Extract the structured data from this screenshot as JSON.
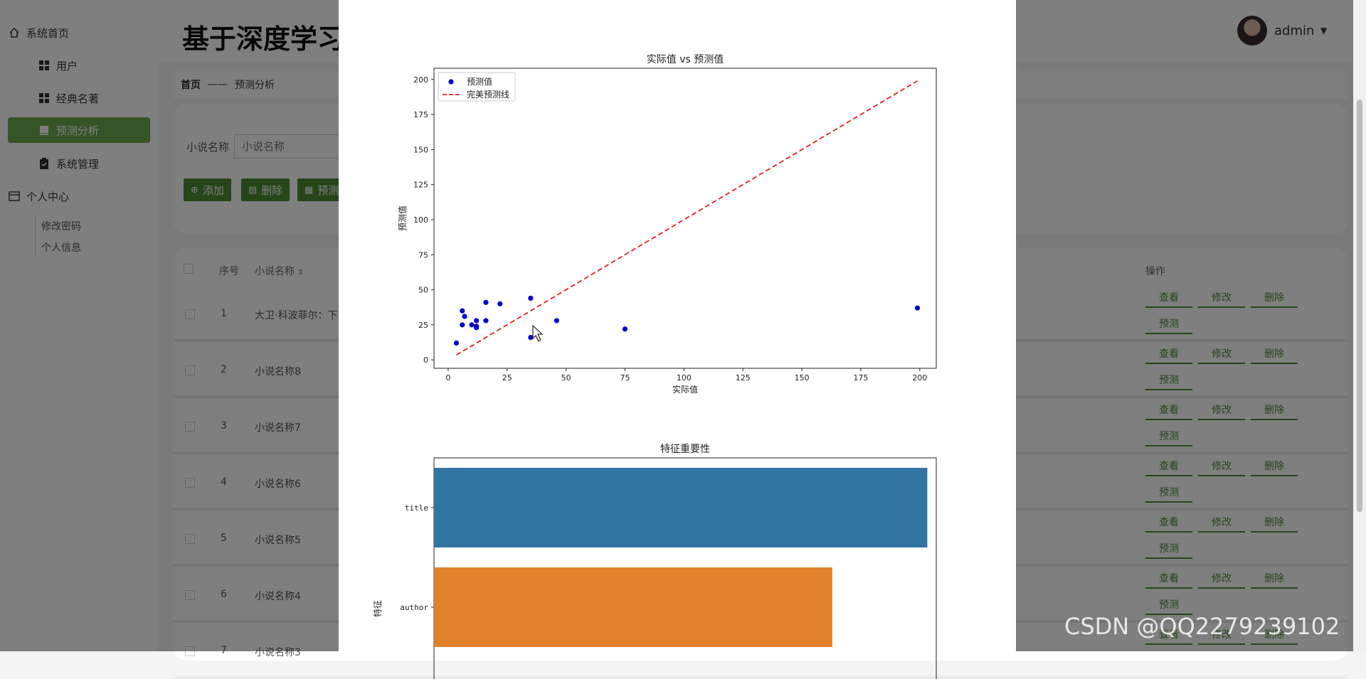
{
  "app": {
    "title": "基于深度学习"
  },
  "sidebar": {
    "items": [
      {
        "label": "系统首页",
        "icon": "home-icon"
      },
      {
        "label": "用户",
        "icon": "grid-icon"
      },
      {
        "label": "经典名著",
        "icon": "grid-icon"
      },
      {
        "label": "预测分析",
        "icon": "book-icon",
        "active": true
      },
      {
        "label": "系统管理",
        "icon": "clipboard-icon"
      },
      {
        "label": "个人中心",
        "icon": "card-icon"
      }
    ],
    "sub_items": [
      "修改密码",
      "个人信息"
    ]
  },
  "header": {
    "user": "admin"
  },
  "breadcrumb": {
    "home": "首页",
    "separator": "——",
    "current": "预测分析"
  },
  "search": {
    "label": "小说名称",
    "placeholder": "小说名称"
  },
  "toolbar": {
    "add": "添加",
    "delete": "删除",
    "predict": "预测"
  },
  "table": {
    "headers": {
      "index": "序号",
      "name": "小说名称",
      "ops": "操作"
    },
    "rows": [
      {
        "index": "1",
        "name": "大卫·科波菲尔：下"
      },
      {
        "index": "2",
        "name": "小说名称8"
      },
      {
        "index": "3",
        "name": "小说名称7"
      },
      {
        "index": "4",
        "name": "小说名称6"
      },
      {
        "index": "5",
        "name": "小说名称5"
      },
      {
        "index": "6",
        "name": "小说名称4"
      },
      {
        "index": "7",
        "name": "小说名称3"
      }
    ],
    "actions": {
      "view": "查看",
      "edit": "修改",
      "delete": "删除",
      "predict": "预测"
    }
  },
  "watermark": "CSDN @QQ2279239102",
  "chart_data": [
    {
      "type": "scatter",
      "title": "实际值 vs 预测值",
      "xlabel": "实际值",
      "ylabel": "预测值",
      "xlim": [
        -6,
        207
      ],
      "ylim": [
        -6,
        208
      ],
      "xticks": [
        0,
        25,
        50,
        75,
        100,
        125,
        150,
        175,
        200
      ],
      "yticks": [
        0,
        25,
        50,
        75,
        100,
        125,
        150,
        175,
        200
      ],
      "legend_position": "top-left",
      "series": [
        {
          "name": "预测值",
          "color": "#0000cc",
          "x": [
            3.5,
            6,
            6,
            7,
            10,
            12,
            12,
            12,
            16,
            16,
            22,
            35,
            35,
            46,
            75,
            199
          ],
          "y": [
            12,
            25,
            35,
            31,
            25,
            24,
            23,
            28,
            41,
            28,
            40,
            44,
            16,
            28,
            22,
            37
          ]
        },
        {
          "name": "完美预测线",
          "color": "#e8211c",
          "style": "dashed",
          "x": [
            3.5,
            199
          ],
          "y": [
            3.5,
            199
          ]
        }
      ]
    },
    {
      "type": "bar",
      "orientation": "horizontal",
      "title": "特征重要性",
      "ylabel": "特征",
      "categories": [
        "title",
        "author"
      ],
      "values": [
        0.55,
        0.444
      ],
      "colors": [
        "#3274a1",
        "#e1812c"
      ]
    }
  ]
}
